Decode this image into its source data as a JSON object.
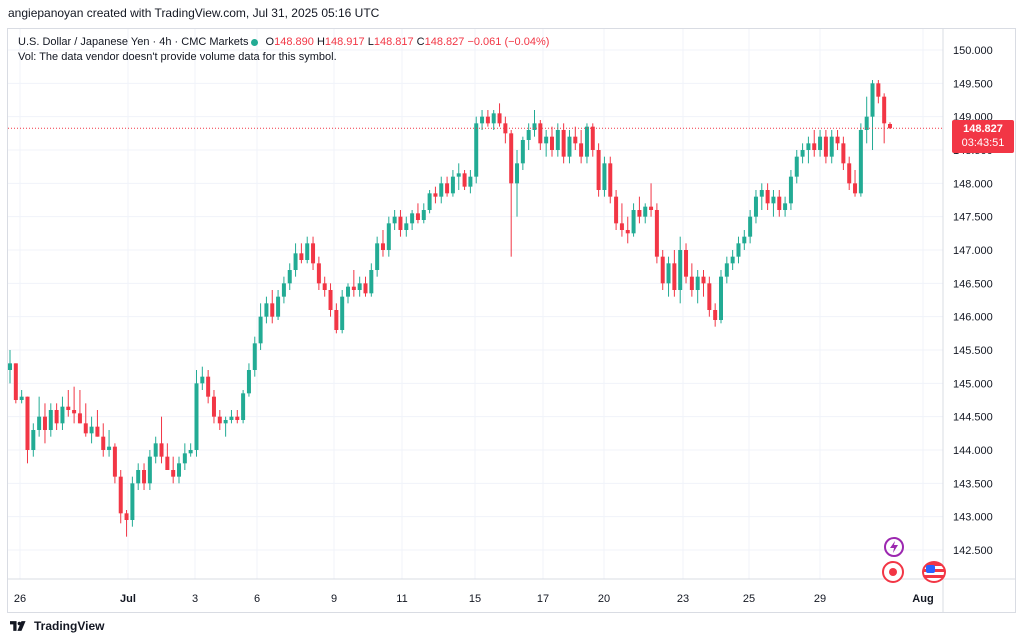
{
  "header": {
    "attribution": "angiepanoyan created with TradingView.com, Jul 31, 2025 05:16 UTC"
  },
  "legend": {
    "symbol": "U.S. Dollar / Japanese Yen · 4h · CMC Markets",
    "o_label": "O",
    "o": "148.890",
    "h_label": "H",
    "h": "148.917",
    "l_label": "L",
    "l": "148.817",
    "c_label": "C",
    "c": "148.827",
    "change": "−0.061 (−0.04%)",
    "vol_note": "Vol: The data vendor doesn't provide volume data for this symbol."
  },
  "price_badge": {
    "price": "148.827",
    "countdown": "03:43:51"
  },
  "footer": {
    "brand": "TradingView"
  },
  "colors": {
    "up": "#22ab94",
    "down": "#f23645",
    "grid": "#f0f3fa",
    "axis_text": "#131722"
  },
  "icons": [
    "lightning-icon",
    "event-flag-icon",
    "us-flag-icon"
  ],
  "chart_data": {
    "type": "candlestick",
    "title": "",
    "xlabel": "",
    "ylabel": "",
    "ylim": [
      142.2,
      150.3
    ],
    "y_ticks": [
      "150.000",
      "149.500",
      "149.000",
      "148.500",
      "148.000",
      "147.500",
      "147.000",
      "146.500",
      "146.000",
      "145.500",
      "145.000",
      "144.500",
      "144.000",
      "143.500",
      "143.000",
      "142.500"
    ],
    "x_ticks": [
      "26",
      "Jul",
      "3",
      "6",
      "9",
      "11",
      "15",
      "17",
      "20",
      "23",
      "25",
      "29",
      "Aug"
    ],
    "last_price": 148.827,
    "grid": true,
    "candles": [
      [
        145.2,
        145.5,
        145.0,
        145.3
      ],
      [
        145.3,
        145.3,
        144.7,
        144.75
      ],
      [
        144.75,
        144.9,
        144.7,
        144.8
      ],
      [
        144.8,
        144.8,
        143.8,
        144.0
      ],
      [
        144.0,
        144.4,
        143.9,
        144.3
      ],
      [
        144.3,
        144.8,
        144.2,
        144.5
      ],
      [
        144.5,
        144.7,
        144.1,
        144.3
      ],
      [
        144.3,
        144.7,
        144.2,
        144.6
      ],
      [
        144.6,
        144.7,
        144.3,
        144.4
      ],
      [
        144.4,
        144.8,
        144.3,
        144.65
      ],
      [
        144.65,
        144.9,
        144.5,
        144.6
      ],
      [
        144.6,
        144.95,
        144.4,
        144.55
      ],
      [
        144.55,
        144.9,
        144.4,
        144.4
      ],
      [
        144.4,
        144.7,
        144.2,
        144.25
      ],
      [
        144.25,
        144.5,
        144.1,
        144.35
      ],
      [
        144.35,
        144.6,
        144.2,
        144.2
      ],
      [
        144.2,
        144.4,
        143.9,
        144.0
      ],
      [
        144.0,
        144.3,
        143.9,
        144.05
      ],
      [
        144.05,
        144.1,
        143.5,
        143.6
      ],
      [
        143.6,
        143.7,
        142.9,
        143.05
      ],
      [
        143.05,
        143.1,
        142.7,
        142.95
      ],
      [
        142.95,
        143.6,
        142.85,
        143.5
      ],
      [
        143.5,
        143.8,
        143.4,
        143.7
      ],
      [
        143.7,
        143.8,
        143.4,
        143.5
      ],
      [
        143.5,
        144.0,
        143.4,
        143.9
      ],
      [
        143.9,
        144.2,
        143.8,
        144.1
      ],
      [
        144.1,
        144.5,
        143.8,
        143.9
      ],
      [
        143.9,
        144.1,
        143.7,
        143.7
      ],
      [
        143.7,
        143.9,
        143.5,
        143.6
      ],
      [
        143.6,
        143.9,
        143.5,
        143.8
      ],
      [
        143.8,
        144.1,
        143.7,
        143.95
      ],
      [
        143.95,
        144.1,
        143.9,
        144.0
      ],
      [
        144.0,
        145.2,
        143.9,
        145.0
      ],
      [
        145.0,
        145.25,
        144.9,
        145.1
      ],
      [
        145.1,
        145.2,
        144.7,
        144.8
      ],
      [
        144.8,
        144.9,
        144.4,
        144.5
      ],
      [
        144.5,
        144.6,
        144.3,
        144.4
      ],
      [
        144.4,
        144.5,
        144.2,
        144.45
      ],
      [
        144.45,
        144.6,
        144.4,
        144.5
      ],
      [
        144.5,
        144.6,
        144.4,
        144.45
      ],
      [
        144.45,
        144.9,
        144.4,
        144.85
      ],
      [
        144.85,
        145.3,
        144.8,
        145.2
      ],
      [
        145.2,
        145.7,
        145.1,
        145.6
      ],
      [
        145.6,
        146.2,
        145.5,
        146.0
      ],
      [
        146.0,
        146.3,
        145.9,
        146.2
      ],
      [
        146.2,
        146.4,
        145.9,
        146.0
      ],
      [
        146.0,
        146.4,
        145.95,
        146.3
      ],
      [
        146.3,
        146.6,
        146.2,
        146.5
      ],
      [
        146.5,
        146.8,
        146.4,
        146.7
      ],
      [
        146.7,
        147.1,
        146.6,
        146.95
      ],
      [
        146.95,
        147.1,
        146.8,
        146.85
      ],
      [
        146.85,
        147.2,
        146.8,
        147.1
      ],
      [
        147.1,
        147.2,
        146.7,
        146.8
      ],
      [
        146.8,
        146.9,
        146.4,
        146.5
      ],
      [
        146.5,
        146.6,
        146.3,
        146.4
      ],
      [
        146.4,
        146.5,
        146.0,
        146.1
      ],
      [
        146.1,
        146.2,
        145.75,
        145.8
      ],
      [
        145.8,
        146.4,
        145.75,
        146.3
      ],
      [
        146.3,
        146.5,
        146.2,
        146.45
      ],
      [
        146.45,
        146.7,
        146.3,
        146.4
      ],
      [
        146.4,
        146.6,
        146.3,
        146.5
      ],
      [
        146.5,
        146.6,
        146.3,
        146.35
      ],
      [
        146.35,
        146.8,
        146.3,
        146.7
      ],
      [
        146.7,
        147.2,
        146.6,
        147.1
      ],
      [
        147.1,
        147.3,
        146.9,
        147.0
      ],
      [
        147.0,
        147.5,
        146.9,
        147.4
      ],
      [
        147.4,
        147.6,
        147.3,
        147.5
      ],
      [
        147.5,
        147.6,
        147.2,
        147.3
      ],
      [
        147.3,
        147.5,
        147.2,
        147.4
      ],
      [
        147.4,
        147.6,
        147.3,
        147.55
      ],
      [
        147.55,
        147.7,
        147.4,
        147.45
      ],
      [
        147.45,
        147.7,
        147.4,
        147.6
      ],
      [
        147.6,
        147.9,
        147.55,
        147.85
      ],
      [
        147.85,
        147.95,
        147.7,
        147.8
      ],
      [
        147.8,
        148.1,
        147.7,
        148.0
      ],
      [
        148.0,
        148.1,
        147.8,
        147.85
      ],
      [
        147.85,
        148.2,
        147.8,
        148.1
      ],
      [
        148.1,
        148.3,
        147.9,
        148.15
      ],
      [
        148.15,
        148.2,
        147.9,
        147.95
      ],
      [
        147.95,
        148.2,
        147.85,
        148.1
      ],
      [
        148.1,
        149.0,
        148.0,
        148.9
      ],
      [
        148.9,
        149.1,
        148.8,
        149.0
      ],
      [
        149.0,
        149.1,
        148.85,
        148.9
      ],
      [
        148.9,
        149.1,
        148.8,
        149.05
      ],
      [
        149.05,
        149.2,
        148.85,
        148.9
      ],
      [
        148.9,
        149.0,
        148.6,
        148.75
      ],
      [
        148.75,
        148.8,
        146.9,
        148.0
      ],
      [
        148.0,
        148.5,
        147.5,
        148.3
      ],
      [
        148.3,
        148.7,
        148.2,
        148.65
      ],
      [
        148.65,
        148.9,
        148.5,
        148.8
      ],
      [
        148.8,
        149.1,
        148.7,
        148.9
      ],
      [
        148.9,
        148.95,
        148.5,
        148.6
      ],
      [
        148.6,
        148.8,
        148.4,
        148.7
      ],
      [
        148.7,
        148.85,
        148.4,
        148.5
      ],
      [
        148.5,
        148.9,
        148.4,
        148.8
      ],
      [
        148.8,
        148.9,
        148.3,
        148.4
      ],
      [
        148.4,
        148.8,
        148.3,
        148.7
      ],
      [
        148.7,
        148.85,
        148.5,
        148.6
      ],
      [
        148.6,
        148.8,
        148.3,
        148.4
      ],
      [
        148.4,
        148.9,
        148.3,
        148.85
      ],
      [
        148.85,
        148.9,
        148.4,
        148.5
      ],
      [
        148.5,
        148.6,
        147.8,
        147.9
      ],
      [
        147.9,
        148.4,
        147.8,
        148.3
      ],
      [
        148.3,
        148.4,
        147.7,
        147.8
      ],
      [
        147.8,
        147.9,
        147.3,
        147.4
      ],
      [
        147.4,
        147.7,
        147.2,
        147.3
      ],
      [
        147.3,
        147.5,
        147.1,
        147.25
      ],
      [
        147.25,
        147.7,
        147.2,
        147.6
      ],
      [
        147.6,
        147.8,
        147.4,
        147.5
      ],
      [
        147.5,
        147.7,
        147.4,
        147.65
      ],
      [
        147.65,
        148.0,
        147.5,
        147.6
      ],
      [
        147.6,
        147.7,
        146.8,
        146.9
      ],
      [
        146.9,
        147.0,
        146.4,
        146.5
      ],
      [
        146.5,
        146.9,
        146.3,
        146.8
      ],
      [
        146.8,
        147.0,
        146.3,
        146.4
      ],
      [
        146.4,
        147.2,
        146.2,
        147.0
      ],
      [
        147.0,
        147.1,
        146.5,
        146.6
      ],
      [
        146.6,
        146.8,
        146.3,
        146.4
      ],
      [
        146.4,
        146.7,
        146.2,
        146.6
      ],
      [
        146.6,
        146.7,
        146.3,
        146.5
      ],
      [
        146.5,
        146.6,
        146.0,
        146.1
      ],
      [
        146.1,
        146.2,
        145.85,
        145.95
      ],
      [
        145.95,
        146.7,
        145.9,
        146.6
      ],
      [
        146.6,
        146.9,
        146.5,
        146.8
      ],
      [
        146.8,
        147.0,
        146.7,
        146.9
      ],
      [
        146.9,
        147.2,
        146.8,
        147.1
      ],
      [
        147.1,
        147.3,
        147.0,
        147.2
      ],
      [
        147.2,
        147.6,
        147.1,
        147.5
      ],
      [
        147.5,
        147.9,
        147.4,
        147.8
      ],
      [
        147.8,
        148.0,
        147.6,
        147.9
      ],
      [
        147.9,
        148.0,
        147.6,
        147.7
      ],
      [
        147.7,
        147.9,
        147.5,
        147.8
      ],
      [
        147.8,
        147.9,
        147.5,
        147.6
      ],
      [
        147.6,
        147.8,
        147.5,
        147.7
      ],
      [
        147.7,
        148.2,
        147.6,
        148.1
      ],
      [
        148.1,
        148.5,
        148.0,
        148.4
      ],
      [
        148.4,
        148.6,
        148.3,
        148.5
      ],
      [
        148.5,
        148.7,
        148.3,
        148.6
      ],
      [
        148.6,
        148.8,
        148.4,
        148.5
      ],
      [
        148.5,
        148.8,
        148.4,
        148.7
      ],
      [
        148.7,
        148.8,
        148.3,
        148.4
      ],
      [
        148.4,
        148.8,
        148.3,
        148.7
      ],
      [
        148.7,
        148.8,
        148.5,
        148.6
      ],
      [
        148.6,
        148.7,
        148.2,
        148.3
      ],
      [
        148.3,
        148.4,
        147.9,
        148.0
      ],
      [
        148.0,
        148.2,
        147.8,
        147.85
      ],
      [
        147.85,
        148.9,
        147.8,
        148.8
      ],
      [
        148.8,
        149.3,
        148.6,
        149.0
      ],
      [
        149.0,
        149.55,
        148.5,
        149.5
      ],
      [
        149.5,
        149.55,
        149.2,
        149.3
      ],
      [
        149.3,
        149.35,
        148.6,
        148.9
      ],
      [
        148.89,
        148.917,
        148.817,
        148.827
      ]
    ]
  }
}
